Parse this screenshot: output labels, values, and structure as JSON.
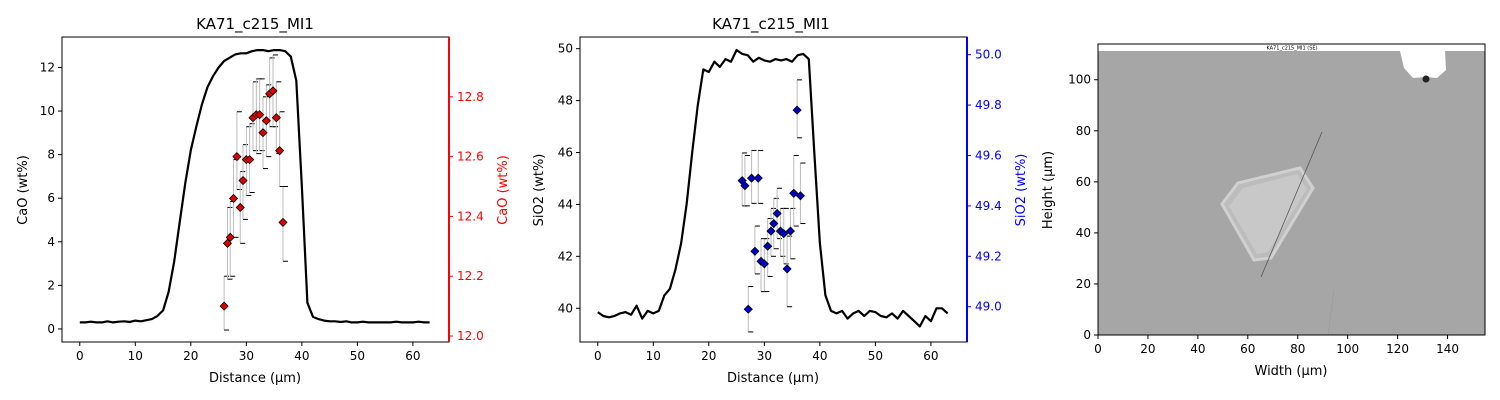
{
  "colors": {
    "profile": "#000000",
    "cao_points": "#e00000",
    "cao_axis": "#ff0000",
    "sio2_points": "#0000cc",
    "sio2_axis": "#0000ff",
    "error_bar": "#bbbbbb",
    "image_bg": "#a6a6a6"
  },
  "chart_data": [
    {
      "type": "line",
      "title": "KA71_c215_MI1",
      "xlabel": "Distance (µm)",
      "ylabel": "CaO (wt%)",
      "ylabel_right": "CaO (wt%)",
      "xlim": [
        -3.2,
        66.5
      ],
      "ylim": [
        -0.6,
        13.4
      ],
      "ylim_right": [
        11.98,
        13.0
      ],
      "xticks": [
        "0",
        "10",
        "20",
        "30",
        "40",
        "50",
        "60"
      ],
      "yticks": [
        "0",
        "2",
        "4",
        "6",
        "8",
        "10",
        "12"
      ],
      "yticks_right": [
        "12.0",
        "12.2",
        "12.4",
        "12.6",
        "12.8"
      ],
      "grid": false,
      "series": [
        {
          "kind": "line",
          "axis": "left",
          "x": [
            0,
            1,
            2,
            3,
            4,
            5,
            6,
            7,
            8,
            9,
            10,
            11,
            12,
            13,
            14,
            15,
            16,
            17,
            18,
            19,
            20,
            21,
            22,
            23,
            24,
            25,
            26,
            27,
            28,
            29,
            30,
            31,
            32,
            33,
            34,
            35,
            36,
            37,
            38,
            39,
            40,
            41,
            42,
            43,
            44,
            45,
            46,
            47,
            48,
            49,
            50,
            51,
            52,
            53,
            54,
            55,
            56,
            57,
            58,
            59,
            60,
            61,
            62,
            63
          ],
          "y": [
            0.3,
            0.3,
            0.33,
            0.3,
            0.3,
            0.35,
            0.3,
            0.33,
            0.35,
            0.32,
            0.38,
            0.35,
            0.4,
            0.45,
            0.6,
            0.85,
            1.7,
            3.1,
            4.9,
            6.7,
            8.2,
            9.3,
            10.3,
            11.1,
            11.6,
            12.0,
            12.3,
            12.45,
            12.6,
            12.65,
            12.65,
            12.75,
            12.8,
            12.8,
            12.75,
            12.8,
            12.8,
            12.75,
            12.5,
            11.4,
            6.5,
            1.2,
            0.55,
            0.45,
            0.38,
            0.35,
            0.35,
            0.32,
            0.35,
            0.3,
            0.3,
            0.33,
            0.3,
            0.3,
            0.3,
            0.3,
            0.3,
            0.33,
            0.3,
            0.3,
            0.3,
            0.33,
            0.3,
            0.3
          ]
        },
        {
          "kind": "points_with_error",
          "axis": "right",
          "points": [
            {
              "x": 26.0,
              "y": 12.1,
              "lo": 12.02,
              "hi": 12.2
            },
            {
              "x": 26.6,
              "y": 12.31,
              "lo": 12.19,
              "hi": 12.43
            },
            {
              "x": 27.1,
              "y": 12.33,
              "lo": 12.2,
              "hi": 12.45
            },
            {
              "x": 27.7,
              "y": 12.46,
              "lo": 12.33,
              "hi": 12.59
            },
            {
              "x": 28.3,
              "y": 12.6,
              "lo": 12.49,
              "hi": 12.75
            },
            {
              "x": 28.9,
              "y": 12.43,
              "lo": 12.31,
              "hi": 12.55
            },
            {
              "x": 29.4,
              "y": 12.52,
              "lo": 12.39,
              "hi": 12.64
            },
            {
              "x": 30.0,
              "y": 12.59,
              "lo": 12.47,
              "hi": 12.7
            },
            {
              "x": 30.6,
              "y": 12.59,
              "lo": 12.48,
              "hi": 12.71
            },
            {
              "x": 31.2,
              "y": 12.73,
              "lo": 12.62,
              "hi": 12.85
            },
            {
              "x": 31.8,
              "y": 12.74,
              "lo": 12.61,
              "hi": 12.86
            },
            {
              "x": 32.4,
              "y": 12.74,
              "lo": 12.62,
              "hi": 12.86
            },
            {
              "x": 33.0,
              "y": 12.68,
              "lo": 12.56,
              "hi": 12.8
            },
            {
              "x": 33.6,
              "y": 12.72,
              "lo": 12.6,
              "hi": 12.84
            },
            {
              "x": 34.2,
              "y": 12.81,
              "lo": 12.7,
              "hi": 12.93
            },
            {
              "x": 34.8,
              "y": 12.82,
              "lo": 12.7,
              "hi": 12.94
            },
            {
              "x": 35.4,
              "y": 12.73,
              "lo": 12.61,
              "hi": 12.85
            },
            {
              "x": 36.0,
              "y": 12.62,
              "lo": 12.5,
              "hi": 12.75
            },
            {
              "x": 36.6,
              "y": 12.38,
              "lo": 12.25,
              "hi": 12.5
            }
          ]
        }
      ]
    },
    {
      "type": "line",
      "title": "KA71_c215_MI1",
      "xlabel": "Distance (µm)",
      "ylabel": "SiO2 (wt%)",
      "ylabel_right": "SiO2 (wt%)",
      "xlim": [
        -3.2,
        66.5
      ],
      "ylim": [
        38.7,
        50.45
      ],
      "ylim_right": [
        48.86,
        50.07
      ],
      "xticks": [
        "0",
        "10",
        "20",
        "30",
        "40",
        "50",
        "60"
      ],
      "yticks": [
        "40",
        "42",
        "44",
        "46",
        "48",
        "50"
      ],
      "yticks_right": [
        "49.0",
        "49.2",
        "49.4",
        "49.6",
        "49.8",
        "50.0"
      ],
      "grid": false,
      "series": [
        {
          "kind": "line",
          "axis": "left",
          "x": [
            0,
            1,
            2,
            3,
            4,
            5,
            6,
            7,
            8,
            9,
            10,
            11,
            12,
            13,
            14,
            15,
            16,
            17,
            18,
            19,
            20,
            21,
            22,
            23,
            24,
            25,
            26,
            27,
            28,
            29,
            30,
            31,
            32,
            33,
            34,
            35,
            36,
            37,
            38,
            39,
            40,
            41,
            42,
            43,
            44,
            45,
            46,
            47,
            48,
            49,
            50,
            51,
            52,
            53,
            54,
            55,
            56,
            57,
            58,
            59,
            60,
            61,
            62,
            63
          ],
          "y": [
            39.85,
            39.7,
            39.65,
            39.7,
            39.8,
            39.85,
            39.75,
            40.1,
            39.6,
            39.9,
            39.8,
            39.9,
            40.5,
            40.75,
            41.5,
            42.5,
            44.0,
            46.0,
            47.8,
            49.2,
            49.1,
            49.5,
            49.3,
            49.6,
            49.5,
            49.95,
            49.8,
            49.75,
            49.5,
            49.65,
            49.55,
            49.5,
            49.6,
            49.55,
            49.6,
            49.5,
            49.75,
            49.8,
            49.6,
            46.0,
            42.5,
            40.5,
            39.9,
            39.8,
            39.9,
            39.6,
            39.8,
            39.9,
            39.7,
            39.9,
            39.85,
            39.7,
            39.65,
            39.8,
            39.6,
            39.9,
            39.7,
            39.5,
            39.3,
            39.7,
            39.5,
            40.0,
            40.0,
            39.8
          ]
        },
        {
          "kind": "points_with_error",
          "axis": "right",
          "points": [
            {
              "x": 26.0,
              "y": 49.5,
              "lo": 49.4,
              "hi": 49.61
            },
            {
              "x": 26.5,
              "y": 49.48,
              "lo": 49.4,
              "hi": 49.6
            },
            {
              "x": 27.1,
              "y": 48.99,
              "lo": 48.9,
              "hi": 49.08
            },
            {
              "x": 27.7,
              "y": 49.51,
              "lo": 49.41,
              "hi": 49.62
            },
            {
              "x": 28.3,
              "y": 49.22,
              "lo": 49.13,
              "hi": 49.32
            },
            {
              "x": 28.9,
              "y": 49.51,
              "lo": 49.41,
              "hi": 49.62
            },
            {
              "x": 29.4,
              "y": 49.18,
              "lo": 49.06,
              "hi": 49.27
            },
            {
              "x": 30.0,
              "y": 49.17,
              "lo": 49.06,
              "hi": 49.27
            },
            {
              "x": 30.6,
              "y": 49.24,
              "lo": 49.12,
              "hi": 49.35
            },
            {
              "x": 31.2,
              "y": 49.3,
              "lo": 49.2,
              "hi": 49.39
            },
            {
              "x": 31.7,
              "y": 49.33,
              "lo": 49.23,
              "hi": 49.43
            },
            {
              "x": 32.3,
              "y": 49.37,
              "lo": 49.27,
              "hi": 49.47
            },
            {
              "x": 32.9,
              "y": 49.3,
              "lo": 49.2,
              "hi": 49.39
            },
            {
              "x": 33.5,
              "y": 49.29,
              "lo": 49.17,
              "hi": 49.39
            },
            {
              "x": 34.1,
              "y": 49.15,
              "lo": 49.0,
              "hi": 49.28
            },
            {
              "x": 34.7,
              "y": 49.3,
              "lo": 49.19,
              "hi": 49.39
            },
            {
              "x": 35.3,
              "y": 49.45,
              "lo": 49.32,
              "hi": 49.6
            },
            {
              "x": 35.9,
              "y": 49.78,
              "lo": 49.67,
              "hi": 49.9
            },
            {
              "x": 36.5,
              "y": 49.44,
              "lo": 49.33,
              "hi": 49.57
            }
          ]
        }
      ]
    },
    {
      "type": "image",
      "title": "",
      "xlabel": "Width (µm)",
      "ylabel": "Height (µm)",
      "xlim": [
        0,
        155
      ],
      "ylim": [
        0,
        114
      ],
      "xticks": [
        "0",
        "20",
        "40",
        "60",
        "80",
        "100",
        "120",
        "140"
      ],
      "yticks": [
        "0",
        "20",
        "40",
        "60",
        "80",
        "100"
      ],
      "image_caption": "KA71_c215_MI1 (SE)",
      "line_label": "",
      "grid": false
    }
  ]
}
